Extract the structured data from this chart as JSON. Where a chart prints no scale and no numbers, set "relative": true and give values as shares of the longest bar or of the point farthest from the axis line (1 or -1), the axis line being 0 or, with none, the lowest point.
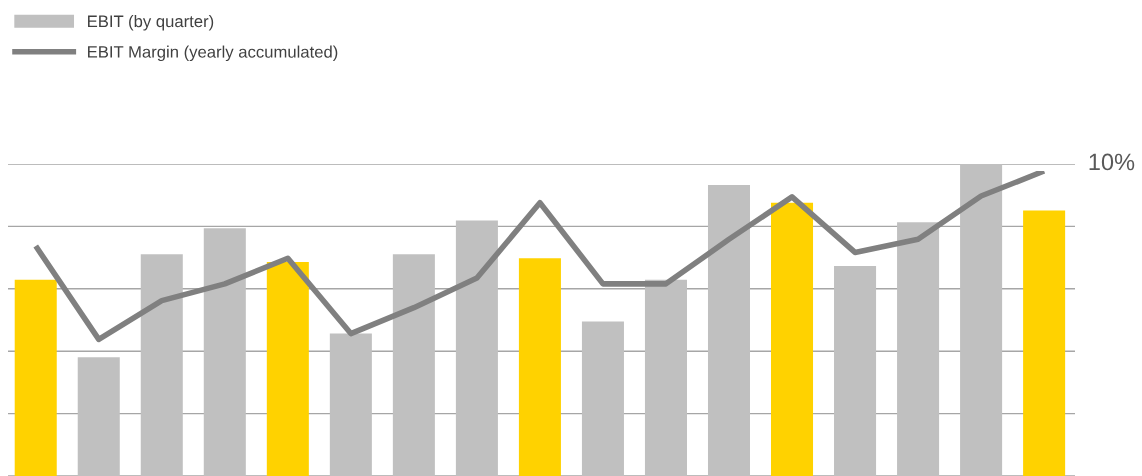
{
  "chart_data": [
    {
      "type": "bar",
      "relative": true,
      "legend": "top left",
      "grid": "y",
      "categories": [
        null,
        null,
        null,
        null,
        null,
        null,
        null,
        null,
        null,
        null,
        null,
        null,
        null,
        null,
        null,
        null,
        null
      ],
      "series": [
        {
          "name": "EBIT (by quarter)",
          "color": "#c0c0c0",
          "colors": [
            "#ffd200",
            "#c0c0c0",
            "#c0c0c0",
            "#c0c0c0",
            "#ffd200",
            "#c0c0c0",
            "#c0c0c0",
            "#c0c0c0",
            "#ffd200",
            "#c0c0c0",
            "#c0c0c0",
            "#c0c0c0",
            "#ffd200",
            "#c0c0c0",
            "#c0c0c0",
            "#c0c0c0",
            "#ffd200"
          ],
          "values": [
            0.629,
            0.381,
            0.711,
            0.794,
            0.686,
            0.457,
            0.711,
            0.819,
            0.698,
            0.495,
            0.629,
            0.933,
            0.876,
            0.673,
            0.813,
            1.0,
            0.851
          ]
        }
      ]
    },
    {
      "type": "line",
      "relative": true,
      "legend": "top left",
      "annotations": [
        "10%"
      ],
      "categories": [
        null,
        null,
        null,
        null,
        null,
        null,
        null,
        null,
        null,
        null,
        null,
        null,
        null,
        null,
        null,
        null,
        null
      ],
      "series": [
        {
          "name": "EBIT Margin (yearly accumulated)",
          "color": "#808080",
          "values": [
            0.754,
            0.448,
            0.575,
            0.63,
            0.714,
            0.467,
            0.552,
            0.649,
            0.896,
            0.63,
            0.63,
            0.776,
            0.915,
            0.733,
            0.776,
            0.918,
            1.0
          ]
        }
      ]
    }
  ]
}
